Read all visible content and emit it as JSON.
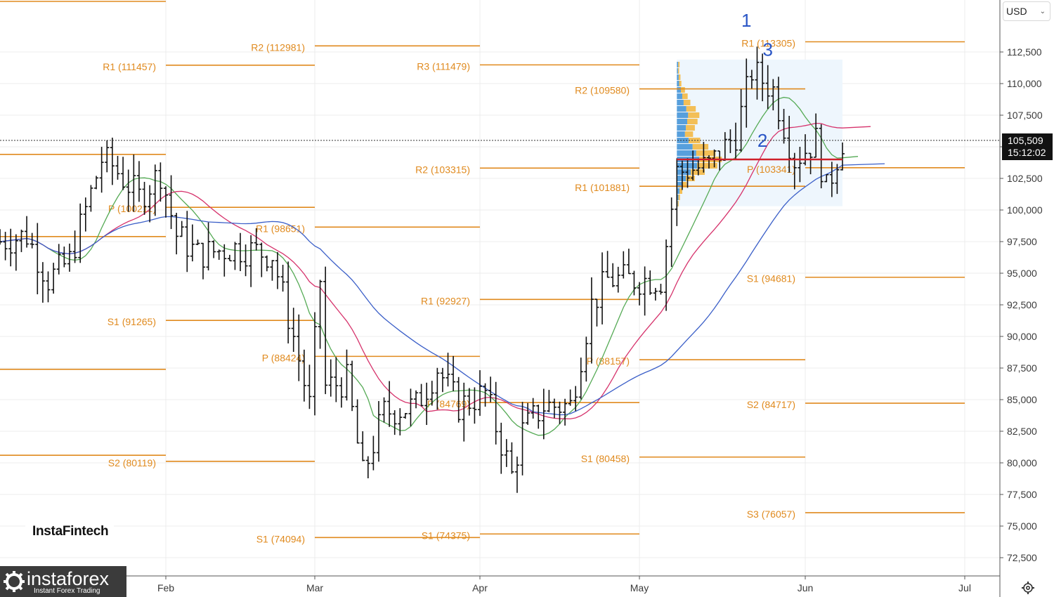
{
  "currency": {
    "label": "USD"
  },
  "price_tag": {
    "value": "105,509",
    "time": "15:12:02"
  },
  "brand": {
    "insta_fintech": "InstaFintech",
    "instaforex": "instaforex",
    "instaforex_tagline": "Instant Forex Trading"
  },
  "chart_data": {
    "type": "ohlc",
    "price_axis": {
      "ylim": [
        71000,
        118000
      ],
      "ticks": [
        72500,
        75000,
        77500,
        80000,
        82500,
        85000,
        87500,
        90000,
        92500,
        95000,
        97500,
        100000,
        102500,
        105000,
        107500,
        110000,
        112500
      ],
      "tick_labels": [
        "72,500",
        "75,000",
        "77,500",
        "80,000",
        "82,500",
        "85,000",
        "87,500",
        "90,000",
        "92,500",
        "95,000",
        "97,500",
        "100,000",
        "102,500",
        "",
        "107,500",
        "110,000",
        "112,500"
      ]
    },
    "time_axis": {
      "labels": [
        {
          "text": "Feb",
          "date": "2025-02-01"
        },
        {
          "text": "Mar",
          "date": "2025-03-01"
        },
        {
          "text": "Apr",
          "date": "2025-04-01"
        },
        {
          "text": "May",
          "date": "2025-05-01"
        },
        {
          "text": "Jun",
          "date": "2025-06-01"
        },
        {
          "text": "Jul",
          "date": "2025-07-01"
        }
      ]
    },
    "current_price": 105509,
    "pivot_levels": [
      {
        "label": "R1 (111457)",
        "value": 111457,
        "from": "2025-02-01",
        "to": "2025-03-01"
      },
      {
        "label": "P (100211)",
        "value": 100211,
        "from": "2025-02-01",
        "to": "2025-03-01"
      },
      {
        "label": "S1 (91265)",
        "value": 91265,
        "from": "2025-02-01",
        "to": "2025-03-01"
      },
      {
        "label": "S2 (80119)",
        "value": 80119,
        "from": "2025-02-01",
        "to": "2025-03-01"
      },
      {
        "label": "R2 (112981)",
        "value": 112981,
        "from": "2025-03-01",
        "to": "2025-04-01"
      },
      {
        "label": "R1 (98651)",
        "value": 98651,
        "from": "2025-03-01",
        "to": "2025-04-01"
      },
      {
        "label": "P (88424)",
        "value": 88424,
        "from": "2025-03-01",
        "to": "2025-04-01"
      },
      {
        "label": "S1 (74094)",
        "value": 74094,
        "from": "2025-03-01",
        "to": "2025-04-01"
      },
      {
        "label": "R3 (111479)",
        "value": 111479,
        "from": "2025-04-01",
        "to": "2025-05-01"
      },
      {
        "label": "R2 (103315)",
        "value": 103315,
        "from": "2025-04-01",
        "to": "2025-05-01"
      },
      {
        "label": "R1 (92927)",
        "value": 92927,
        "from": "2025-04-01",
        "to": "2025-05-01"
      },
      {
        "label": "P (84769)",
        "value": 84769,
        "from": "2025-04-01",
        "to": "2025-05-01"
      },
      {
        "label": "S1 (74375)",
        "value": 74375,
        "from": "2025-04-01",
        "to": "2025-05-01"
      },
      {
        "label": "R2 (109580)",
        "value": 109580,
        "from": "2025-05-01",
        "to": "2025-06-01"
      },
      {
        "label": "R1 (101881)",
        "value": 101881,
        "from": "2025-05-01",
        "to": "2025-06-01"
      },
      {
        "label": "P (88157)",
        "value": 88157,
        "from": "2025-05-01",
        "to": "2025-06-01"
      },
      {
        "label": "S1 (80458)",
        "value": 80458,
        "from": "2025-05-01",
        "to": "2025-06-01"
      },
      {
        "label": "R1 (113305)",
        "value": 113305,
        "from": "2025-06-01",
        "to": "2025-07-01"
      },
      {
        "label": "P (103341)",
        "value": 103341,
        "from": "2025-06-01",
        "to": "2025-07-01"
      },
      {
        "label": "S1 (94681)",
        "value": 94681,
        "from": "2025-06-01",
        "to": "2025-07-01"
      },
      {
        "label": "S2 (84717)",
        "value": 84717,
        "from": "2025-06-01",
        "to": "2025-07-01"
      },
      {
        "label": "S3 (76057)",
        "value": 76057,
        "from": "2025-06-01",
        "to": "2025-07-01"
      }
    ],
    "unlabeled_levels": [
      {
        "value": 116500,
        "from": "2025-01-01",
        "to": "2025-02-01"
      },
      {
        "value": 104400,
        "from": "2025-01-01",
        "to": "2025-02-01"
      },
      {
        "value": 97900,
        "from": "2025-01-01",
        "to": "2025-02-01"
      },
      {
        "value": 87400,
        "from": "2025-01-01",
        "to": "2025-02-01"
      },
      {
        "value": 80600,
        "from": "2025-01-01",
        "to": "2025-02-01"
      }
    ],
    "poc_level": {
      "value": 104000,
      "from": "2025-05-08",
      "to": "2025-06-08"
    },
    "wave_labels": [
      {
        "text": "1",
        "date": "2025-05-21",
        "price": 114500
      },
      {
        "text": "3",
        "date": "2025-05-25",
        "price": 112200
      },
      {
        "text": "2",
        "date": "2025-05-24",
        "price": 105000
      }
    ],
    "volume_profile": {
      "from": "2025-05-08",
      "to": "2025-06-08",
      "price_range": [
        100300,
        111900
      ],
      "note_levels": [
        {
          "price": 111500,
          "weight": 0.06
        },
        {
          "price": 111000,
          "weight": 0.05
        },
        {
          "price": 110500,
          "weight": 0.08
        },
        {
          "price": 110000,
          "weight": 0.1
        },
        {
          "price": 109500,
          "weight": 0.18
        },
        {
          "price": 109000,
          "weight": 0.24
        },
        {
          "price": 108500,
          "weight": 0.3
        },
        {
          "price": 108000,
          "weight": 0.42
        },
        {
          "price": 107500,
          "weight": 0.5
        },
        {
          "price": 107000,
          "weight": 0.46
        },
        {
          "price": 106500,
          "weight": 0.4
        },
        {
          "price": 106000,
          "weight": 0.36
        },
        {
          "price": 105500,
          "weight": 0.52
        },
        {
          "price": 105000,
          "weight": 0.7
        },
        {
          "price": 104500,
          "weight": 0.86
        },
        {
          "price": 104000,
          "weight": 1.0
        },
        {
          "price": 103500,
          "weight": 0.9
        },
        {
          "price": 103000,
          "weight": 0.62
        },
        {
          "price": 102500,
          "weight": 0.4
        },
        {
          "price": 102000,
          "weight": 0.22
        },
        {
          "price": 101500,
          "weight": 0.12
        },
        {
          "price": 101000,
          "weight": 0.07
        },
        {
          "price": 100500,
          "weight": 0.04
        }
      ]
    },
    "anchors": [
      {
        "date": "2025-01-01",
        "close": 97500
      },
      {
        "date": "2025-01-06",
        "close": 98000
      },
      {
        "date": "2025-01-10",
        "close": 94500
      },
      {
        "date": "2025-01-14",
        "close": 96000
      },
      {
        "date": "2025-01-20",
        "close": 104000
      },
      {
        "date": "2025-01-22",
        "close": 103500
      },
      {
        "date": "2025-01-27",
        "close": 101000
      },
      {
        "date": "2025-01-31",
        "close": 103000
      },
      {
        "date": "2025-02-03",
        "close": 98000
      },
      {
        "date": "2025-02-07",
        "close": 96500
      },
      {
        "date": "2025-02-14",
        "close": 97000
      },
      {
        "date": "2025-02-21",
        "close": 96500
      },
      {
        "date": "2025-02-25",
        "close": 90000
      },
      {
        "date": "2025-02-28",
        "close": 84500
      },
      {
        "date": "2025-03-02",
        "close": 94500
      },
      {
        "date": "2025-03-03",
        "close": 86000
      },
      {
        "date": "2025-03-07",
        "close": 86500
      },
      {
        "date": "2025-03-10",
        "close": 79000
      },
      {
        "date": "2025-03-14",
        "close": 84000
      },
      {
        "date": "2025-03-20",
        "close": 84500
      },
      {
        "date": "2025-03-24",
        "close": 87500
      },
      {
        "date": "2025-03-28",
        "close": 84500
      },
      {
        "date": "2025-04-02",
        "close": 85500
      },
      {
        "date": "2025-04-07",
        "close": 79000
      },
      {
        "date": "2025-04-09",
        "close": 82500
      },
      {
        "date": "2025-04-13",
        "close": 84500
      },
      {
        "date": "2025-04-18",
        "close": 84500
      },
      {
        "date": "2025-04-22",
        "close": 92500
      },
      {
        "date": "2025-04-25",
        "close": 94500
      },
      {
        "date": "2025-04-30",
        "close": 94500
      },
      {
        "date": "2025-05-05",
        "close": 94500
      },
      {
        "date": "2025-05-08",
        "close": 103000
      },
      {
        "date": "2025-05-14",
        "close": 103500
      },
      {
        "date": "2025-05-19",
        "close": 106000
      },
      {
        "date": "2025-05-22",
        "close": 111000
      },
      {
        "date": "2025-05-26",
        "close": 109500
      },
      {
        "date": "2025-05-30",
        "close": 104000
      },
      {
        "date": "2025-06-03",
        "close": 105500
      },
      {
        "date": "2025-06-05",
        "close": 101500
      },
      {
        "date": "2025-06-08",
        "close": 105509
      }
    ],
    "moving_averages": [
      {
        "color": "#55aa55",
        "period": 5
      },
      {
        "color": "#d6336c",
        "period": 10
      },
      {
        "color": "#3b5fc8",
        "period": 20
      }
    ],
    "colors": {
      "pivot": "#e08a1e",
      "bars": "#111111",
      "poc": "#d0202a",
      "profile_box": "#eef6fd",
      "profile_blue": "#3c8fd6",
      "profile_yellow": "#f3b53a",
      "grid": "#ececec"
    }
  }
}
